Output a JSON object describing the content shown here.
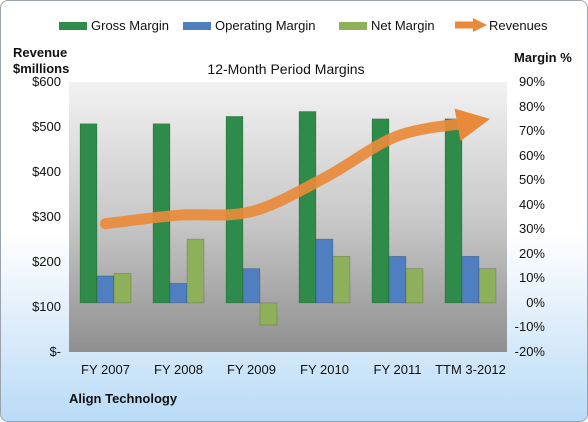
{
  "chart_data": {
    "type": "bar",
    "title": "12-Month Period Margins",
    "categories": [
      "FY 2007",
      "FY 2008",
      "FY 2009",
      "FY 2010",
      "FY 2011",
      "TTM 3-2012"
    ],
    "series": [
      {
        "name": "Gross Margin",
        "axis": "right",
        "values": [
          73,
          73,
          76,
          78,
          75,
          75
        ],
        "color": "#2e8b4a"
      },
      {
        "name": "Operating Margin",
        "axis": "right",
        "values": [
          11,
          8,
          14,
          26,
          19,
          19
        ],
        "color": "#4f7fc0"
      },
      {
        "name": "Net Margin",
        "axis": "right",
        "values": [
          12,
          26,
          -9,
          19,
          14,
          14
        ],
        "color": "#8fb05a"
      },
      {
        "name": "Revenues",
        "axis": "left",
        "type": "line",
        "values": [
          285,
          304,
          312,
          387,
          480,
          510
        ],
        "color": "#e98a3a"
      }
    ],
    "y_left": {
      "label_line1": "Revenue",
      "label_line2": "$millions",
      "ticks": [
        "$-",
        "$100",
        "$200",
        "$300",
        "$400",
        "$500",
        "$600"
      ],
      "ylim": [
        0,
        600
      ]
    },
    "y_right": {
      "label": "Margin %",
      "ticks": [
        "-20%",
        "-10%",
        "0%",
        "10%",
        "20%",
        "30%",
        "40%",
        "50%",
        "60%",
        "70%",
        "80%",
        "90%"
      ],
      "ylim": [
        -20,
        90
      ]
    },
    "legend_position": "top",
    "grid": false
  },
  "footer": {
    "company": "Align Technology"
  }
}
